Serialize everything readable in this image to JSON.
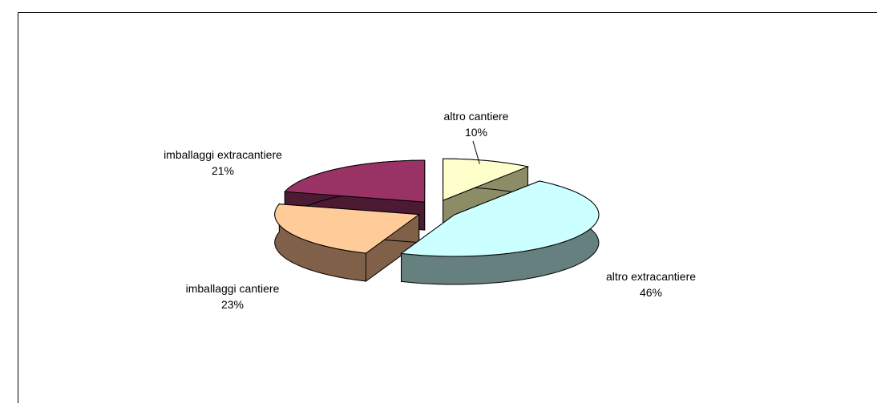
{
  "chart_data": {
    "type": "pie3d",
    "categories": [
      "altro cantiere",
      "altro extracantiere",
      "imballaggi cantiere",
      "imballaggi extracantiere"
    ],
    "values": [
      10,
      46,
      23,
      21
    ],
    "value_labels": [
      "10%",
      "46%",
      "23%",
      "21%"
    ],
    "colors": [
      "#FFFFCC",
      "#CCFFFF",
      "#FFCC99",
      "#993366"
    ],
    "side_colors": [
      "#8C8C66",
      "#668080",
      "#806048",
      "#4D1A33"
    ]
  }
}
